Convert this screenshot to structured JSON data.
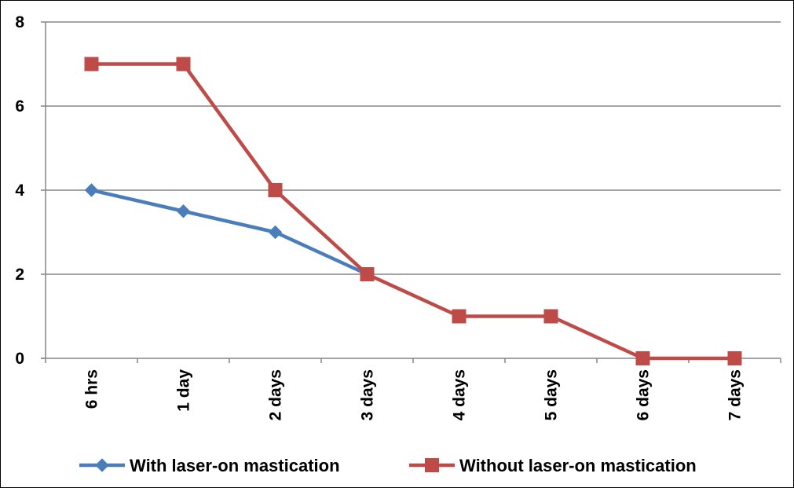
{
  "chart_data": {
    "type": "line",
    "categories": [
      "6 hrs",
      "1 day",
      "2 days",
      "3 days",
      "4 days",
      "5 days",
      "6 days",
      "7 days"
    ],
    "series": [
      {
        "name": "With laser-on mastication",
        "color": "#4a7ebb",
        "marker": "diamond",
        "values": [
          4,
          3.5,
          3,
          2,
          null,
          null,
          null,
          null
        ]
      },
      {
        "name": "Without laser-on mastication",
        "color": "#be4b48",
        "marker": "square",
        "values": [
          7,
          7,
          4,
          2,
          1,
          1,
          0,
          0
        ]
      }
    ],
    "ylim": [
      0,
      8
    ],
    "yticks": [
      0,
      2,
      4,
      6,
      8
    ],
    "grid": true,
    "legend_position": "bottom"
  }
}
